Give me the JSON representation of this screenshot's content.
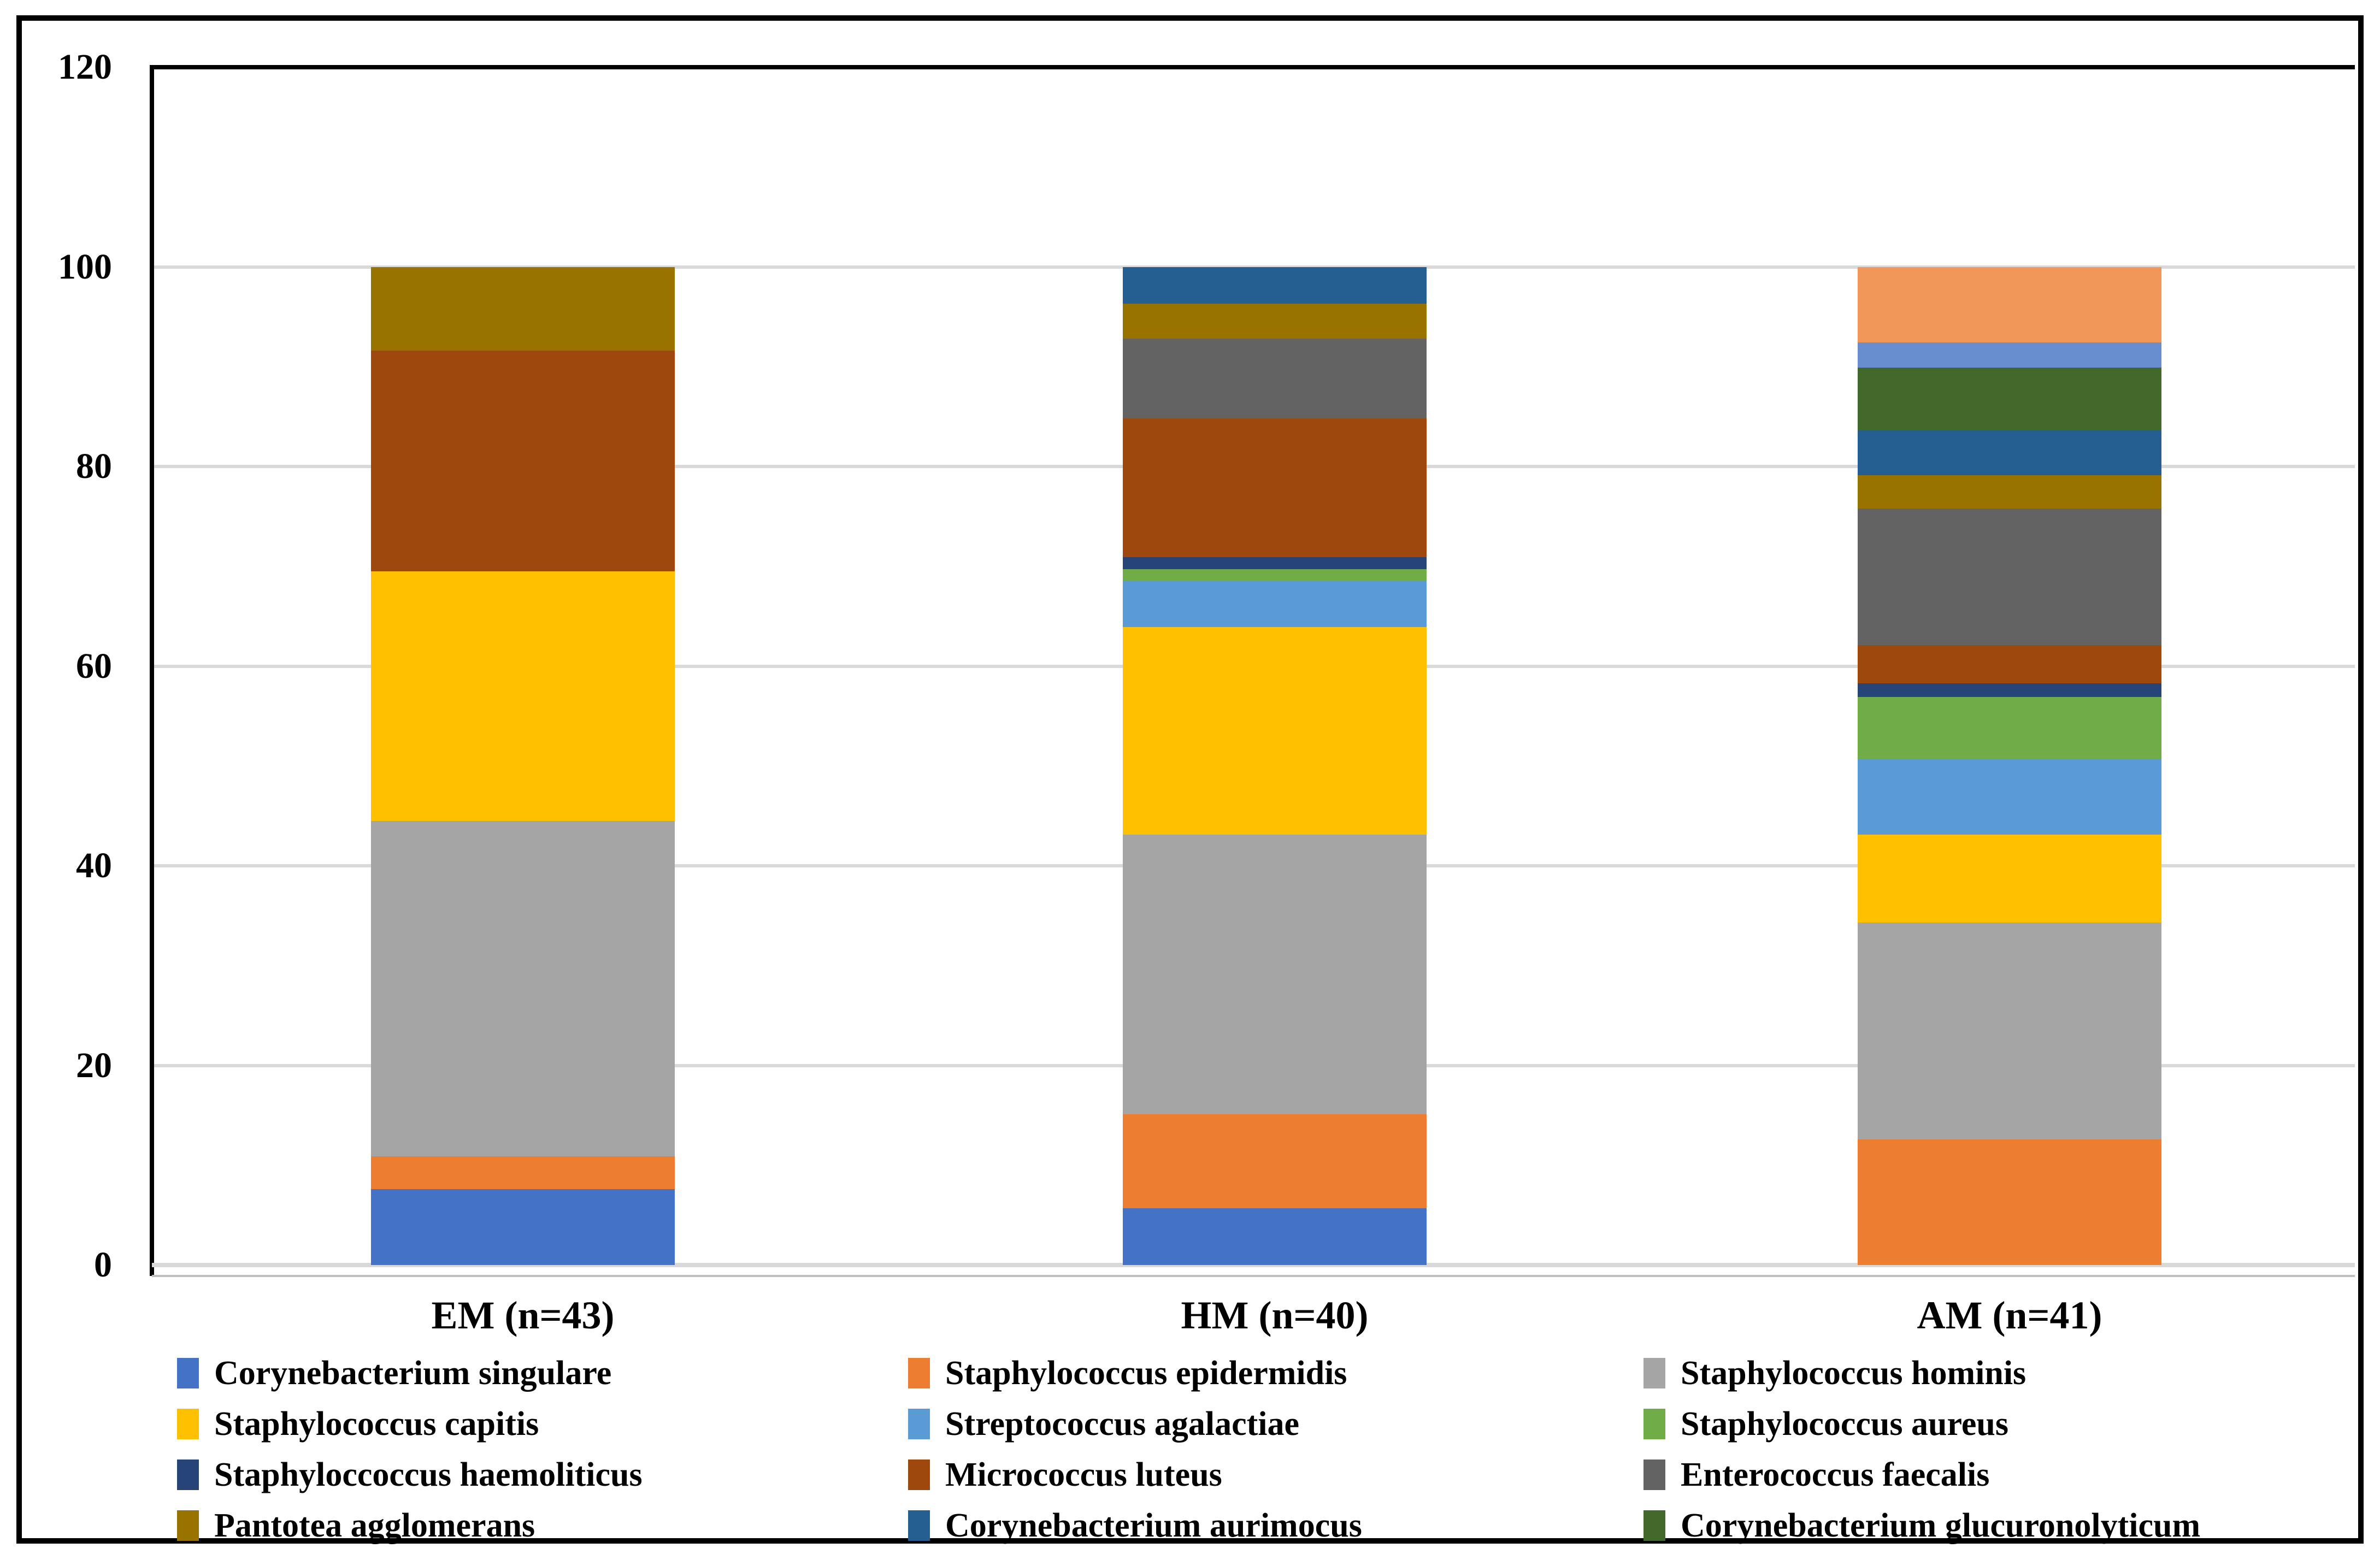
{
  "figure": {
    "background": "#FFFFFF",
    "border_color": "#000000",
    "gridline_color": "#D9D9D9",
    "axis_color": "#000000"
  },
  "chart_data": {
    "type": "bar",
    "stacked": true,
    "orientation": "vertical",
    "title": "",
    "xlabel": "",
    "ylabel": "",
    "grid": "horizontal",
    "legend_position": "bottom",
    "legend_columns": 3,
    "categories": [
      "EM (n=43)",
      "HM (n=40)",
      "AM (n=41)"
    ],
    "y_axis": {
      "min": 0,
      "max": 120,
      "tick_step": 20,
      "ticks": [
        "0",
        "20",
        "40",
        "60",
        "80",
        "100",
        "120"
      ]
    },
    "series": [
      {
        "key": "corynebacterium-singulare",
        "name": "Corynebacterium singulare",
        "color": "#4472C4",
        "in_legend": true,
        "values": [
          7.6,
          5.7,
          0
        ]
      },
      {
        "key": "staphylococcus-epidermidis",
        "name": "Staphylococcus epidermidis",
        "color": "#ED7D31",
        "in_legend": true,
        "values": [
          3.3,
          9.4,
          12.6
        ]
      },
      {
        "key": "staphylococcus-hominis",
        "name": "Staphylococcus hominis",
        "color": "#A5A5A5",
        "in_legend": true,
        "values": [
          33.6,
          28.0,
          21.7
        ]
      },
      {
        "key": "staphylococcus-capitis",
        "name": "Staphylococcus capitis",
        "color": "#FFC000",
        "in_legend": true,
        "values": [
          25.0,
          20.8,
          8.8
        ]
      },
      {
        "key": "streptococcus-agalactiae",
        "name": "Streptococcus agalactiae",
        "color": "#5B9BD5",
        "in_legend": true,
        "values": [
          0,
          4.6,
          7.6
        ]
      },
      {
        "key": "staphylococcus-aureus",
        "name": "Staphylococcus aureus",
        "color": "#70AD47",
        "in_legend": true,
        "values": [
          0,
          1.2,
          6.2
        ]
      },
      {
        "key": "staphyloccoccus-haemoliticus",
        "name": "Staphyloccoccus haemoliticus",
        "color": "#264478",
        "in_legend": true,
        "values": [
          0,
          1.2,
          1.4
        ]
      },
      {
        "key": "micrococcus-luteus",
        "name": "Micrococcus luteus",
        "color": "#9E480E",
        "in_legend": true,
        "values": [
          22.1,
          13.9,
          3.8
        ]
      },
      {
        "key": "enterococcus-faecalis",
        "name": "Enterococcus faecalis",
        "color": "#636363",
        "in_legend": true,
        "values": [
          0,
          8.0,
          13.7
        ]
      },
      {
        "key": "pantotea-agglomerans",
        "name": "Pantotea agglomerans",
        "color": "#997300",
        "in_legend": true,
        "values": [
          8.4,
          3.5,
          3.3
        ]
      },
      {
        "key": "corynebacterium-aurimocus",
        "name": "Corynebacterium aurimocus",
        "color": "#255E91",
        "in_legend": true,
        "values": [
          0,
          3.7,
          4.5
        ]
      },
      {
        "key": "corynebacterium-glucuronolyticum",
        "name": "Corynebacterium glucuronolyticum",
        "color": "#43682B",
        "in_legend": true,
        "values": [
          0,
          0,
          6.3
        ]
      },
      {
        "key": "unlabeled-light-blue",
        "name": "",
        "color": "#698ED0",
        "in_legend": false,
        "values": [
          0,
          0,
          2.5
        ]
      },
      {
        "key": "unlabeled-light-orange",
        "name": "",
        "color": "#F1975A",
        "in_legend": false,
        "values": [
          0,
          0,
          7.6
        ]
      }
    ]
  }
}
